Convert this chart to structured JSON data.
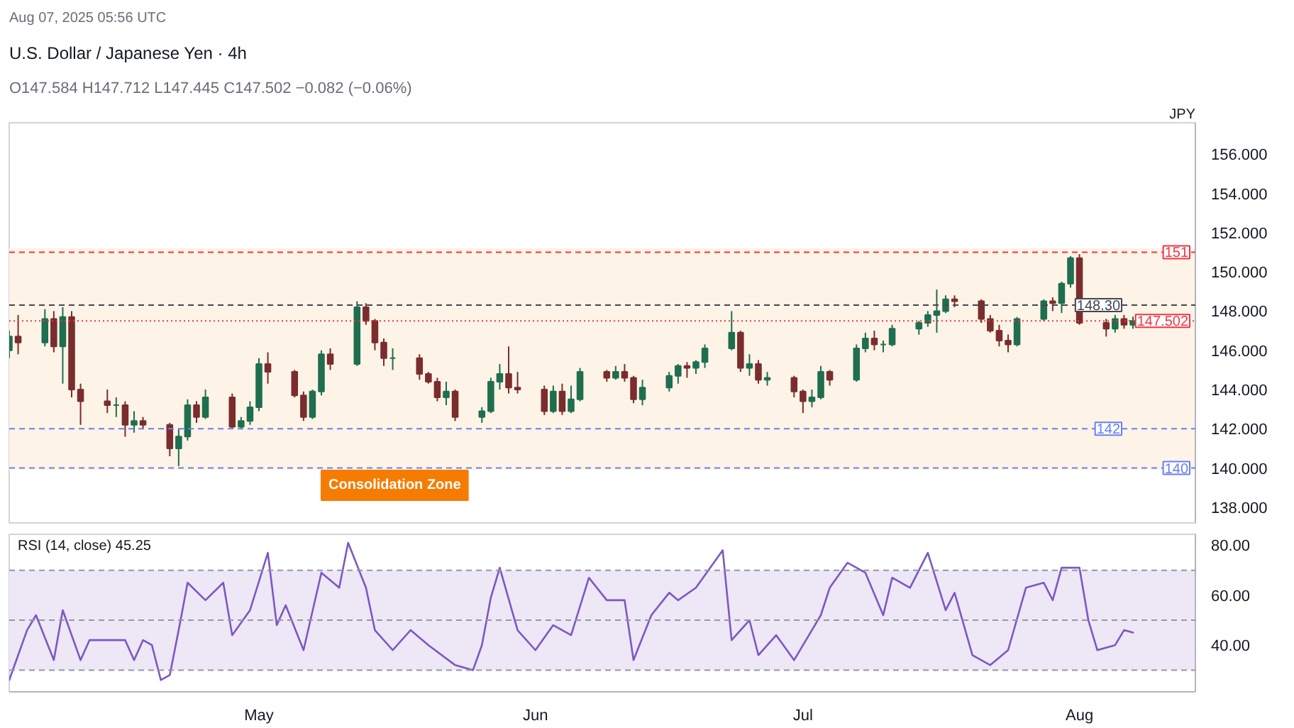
{
  "chart_data": [
    {
      "type": "candlestick",
      "title": "U.S. Dollar / Japanese Yen · 4h",
      "subtitle": "O147.584  H147.712  L147.445  C147.502  −0.082 (−0.06%)",
      "ylabel": "JPY",
      "annotations": [
        "Aug 07, 2025 05:56 UTC",
        "Consolidation Zone"
      ],
      "x": [
        "2025-04-03",
        "2025-04-04",
        "2025-04-07",
        "2025-04-08",
        "2025-04-09",
        "2025-04-10",
        "2025-04-11",
        "2025-04-14",
        "2025-04-15",
        "2025-04-16",
        "2025-04-17",
        "2025-04-18",
        "2025-04-21",
        "2025-04-22",
        "2025-04-23",
        "2025-04-24",
        "2025-04-25",
        "2025-04-28",
        "2025-04-29",
        "2025-04-30",
        "2025-05-01",
        "2025-05-02",
        "2025-05-05",
        "2025-05-06",
        "2025-05-07",
        "2025-05-08",
        "2025-05-09",
        "2025-05-12",
        "2025-05-13",
        "2025-05-14",
        "2025-05-15",
        "2025-05-16",
        "2025-05-19",
        "2025-05-20",
        "2025-05-21",
        "2025-05-22",
        "2025-05-23",
        "2025-05-26",
        "2025-05-27",
        "2025-05-28",
        "2025-05-29",
        "2025-05-30",
        "2025-06-02",
        "2025-06-03",
        "2025-06-04",
        "2025-06-05",
        "2025-06-06",
        "2025-06-09",
        "2025-06-10",
        "2025-06-11",
        "2025-06-12",
        "2025-06-13",
        "2025-06-16",
        "2025-06-17",
        "2025-06-18",
        "2025-06-19",
        "2025-06-20",
        "2025-06-23",
        "2025-06-24",
        "2025-06-25",
        "2025-06-26",
        "2025-06-27",
        "2025-06-30",
        "2025-07-01",
        "2025-07-02",
        "2025-07-03",
        "2025-07-04",
        "2025-07-07",
        "2025-07-08",
        "2025-07-09",
        "2025-07-10",
        "2025-07-11",
        "2025-07-14",
        "2025-07-15",
        "2025-07-16",
        "2025-07-17",
        "2025-07-18",
        "2025-07-21",
        "2025-07-22",
        "2025-07-23",
        "2025-07-24",
        "2025-07-25",
        "2025-07-28",
        "2025-07-29",
        "2025-07-30",
        "2025-07-31",
        "2025-08-01",
        "2025-08-04",
        "2025-08-05",
        "2025-08-06",
        "2025-08-07"
      ],
      "ohlc": [
        [
          146.0,
          147.0,
          145.6,
          146.7
        ],
        [
          146.7,
          147.8,
          145.8,
          146.4
        ],
        [
          146.4,
          148.1,
          146.2,
          147.6
        ],
        [
          147.6,
          148.0,
          145.9,
          146.2
        ],
        [
          146.2,
          148.2,
          144.3,
          147.7
        ],
        [
          147.7,
          148.0,
          143.6,
          144.0
        ],
        [
          144.0,
          144.3,
          142.2,
          143.4
        ],
        [
          143.4,
          144.0,
          142.8,
          143.2
        ],
        [
          143.2,
          143.6,
          142.6,
          143.2
        ],
        [
          143.2,
          143.4,
          141.6,
          142.2
        ],
        [
          142.2,
          142.9,
          141.8,
          142.4
        ],
        [
          142.4,
          142.6,
          142.0,
          142.2
        ],
        [
          142.2,
          142.3,
          140.6,
          141.0
        ],
        [
          141.0,
          142.0,
          140.1,
          141.6
        ],
        [
          141.6,
          143.5,
          141.4,
          143.2
        ],
        [
          143.2,
          143.4,
          142.3,
          142.6
        ],
        [
          142.6,
          144.0,
          142.5,
          143.6
        ],
        [
          143.6,
          143.8,
          142.0,
          142.1
        ],
        [
          142.1,
          142.6,
          142.0,
          142.4
        ],
        [
          142.4,
          143.4,
          142.2,
          143.1
        ],
        [
          143.1,
          145.6,
          142.9,
          145.3
        ],
        [
          145.3,
          145.9,
          144.3,
          144.9
        ],
        [
          144.9,
          145.0,
          143.6,
          143.7
        ],
        [
          143.7,
          143.9,
          142.4,
          142.6
        ],
        [
          142.6,
          144.0,
          142.5,
          143.9
        ],
        [
          143.9,
          146.0,
          143.7,
          145.8
        ],
        [
          145.8,
          146.1,
          145.0,
          145.3
        ],
        [
          145.3,
          148.5,
          145.2,
          148.2
        ],
        [
          148.2,
          148.4,
          147.3,
          147.5
        ],
        [
          147.5,
          147.6,
          146.0,
          146.4
        ],
        [
          146.4,
          146.6,
          145.2,
          145.6
        ],
        [
          145.6,
          146.1,
          145.0,
          145.6
        ],
        [
          145.6,
          145.8,
          144.5,
          144.8
        ],
        [
          144.8,
          144.9,
          144.3,
          144.4
        ],
        [
          144.4,
          144.6,
          143.4,
          143.6
        ],
        [
          143.6,
          144.4,
          143.2,
          143.9
        ],
        [
          143.9,
          144.0,
          142.4,
          142.6
        ],
        [
          142.6,
          143.1,
          142.3,
          142.9
        ],
        [
          142.9,
          144.6,
          142.8,
          144.4
        ],
        [
          144.4,
          145.3,
          144.0,
          144.8
        ],
        [
          144.8,
          146.2,
          143.8,
          144.1
        ],
        [
          144.1,
          144.9,
          143.8,
          144.0
        ],
        [
          144.0,
          144.2,
          142.7,
          142.9
        ],
        [
          142.9,
          144.2,
          142.8,
          143.9
        ],
        [
          143.9,
          144.3,
          142.7,
          142.9
        ],
        [
          142.9,
          144.2,
          142.8,
          143.5
        ],
        [
          143.5,
          145.1,
          143.4,
          144.9
        ],
        [
          144.9,
          145.0,
          144.4,
          144.6
        ],
        [
          144.6,
          145.2,
          144.5,
          144.9
        ],
        [
          144.9,
          145.3,
          144.4,
          144.6
        ],
        [
          144.6,
          144.7,
          143.3,
          143.5
        ],
        [
          143.5,
          144.5,
          143.2,
          144.1
        ],
        [
          144.1,
          144.9,
          143.9,
          144.7
        ],
        [
          144.7,
          145.3,
          144.3,
          145.2
        ],
        [
          145.2,
          145.4,
          144.6,
          145.1
        ],
        [
          145.1,
          145.5,
          144.8,
          145.4
        ],
        [
          145.4,
          146.3,
          145.1,
          146.1
        ],
        [
          146.1,
          148.0,
          146.0,
          146.9
        ],
        [
          146.9,
          147.0,
          144.9,
          145.1
        ],
        [
          145.1,
          145.8,
          144.7,
          145.3
        ],
        [
          145.3,
          145.5,
          144.3,
          144.5
        ],
        [
          144.5,
          144.9,
          144.2,
          144.6
        ],
        [
          144.6,
          144.7,
          143.6,
          143.9
        ],
        [
          143.9,
          144.0,
          142.8,
          143.4
        ],
        [
          143.4,
          144.0,
          143.1,
          143.6
        ],
        [
          143.6,
          145.2,
          143.5,
          144.9
        ],
        [
          144.9,
          145.0,
          144.2,
          144.5
        ],
        [
          144.5,
          146.3,
          144.4,
          146.1
        ],
        [
          146.1,
          146.9,
          145.9,
          146.6
        ],
        [
          146.6,
          147.0,
          146.0,
          146.3
        ],
        [
          146.3,
          146.5,
          145.9,
          146.3
        ],
        [
          146.3,
          147.3,
          146.2,
          147.1
        ],
        [
          147.1,
          147.5,
          146.8,
          147.4
        ],
        [
          147.4,
          148.0,
          147.2,
          147.8
        ],
        [
          147.8,
          149.1,
          146.9,
          148.0
        ],
        [
          148.0,
          148.8,
          147.9,
          148.6
        ],
        [
          148.6,
          148.8,
          148.2,
          148.5
        ],
        [
          148.5,
          148.6,
          147.4,
          147.6
        ],
        [
          147.6,
          147.8,
          146.9,
          147.0
        ],
        [
          147.0,
          147.3,
          146.2,
          146.5
        ],
        [
          146.5,
          146.8,
          145.9,
          146.3
        ],
        [
          146.3,
          147.7,
          146.2,
          147.6
        ],
        [
          147.6,
          148.6,
          147.5,
          148.5
        ],
        [
          148.5,
          148.7,
          148.0,
          148.4
        ],
        [
          148.4,
          149.5,
          147.9,
          149.4
        ],
        [
          149.4,
          150.8,
          149.2,
          150.7
        ],
        [
          150.7,
          150.9,
          147.3,
          147.4
        ],
        [
          147.4,
          147.6,
          146.7,
          147.1
        ],
        [
          147.1,
          147.8,
          146.9,
          147.6
        ],
        [
          147.6,
          147.8,
          147.1,
          147.3
        ],
        [
          147.3,
          147.712,
          147.1,
          147.502
        ]
      ],
      "xlim": [
        "2025-04-03",
        "2025-08-14"
      ],
      "ylim": [
        137.2,
        157.6
      ],
      "yticks": [
        {
          "value": 138,
          "label": "138.000"
        },
        {
          "value": 140,
          "label": "140.000"
        },
        {
          "value": 142,
          "label": "142.000"
        },
        {
          "value": 144,
          "label": "144.000"
        },
        {
          "value": 146,
          "label": "146.000"
        },
        {
          "value": 148,
          "label": "148.000"
        },
        {
          "value": 150,
          "label": "150.000"
        },
        {
          "value": 152,
          "label": "152.000"
        },
        {
          "value": 154,
          "label": "154.000"
        },
        {
          "value": 156,
          "label": "156.000"
        }
      ],
      "ref_lines": [
        {
          "axis": "y",
          "value": 151,
          "label": "151",
          "color": "#f23645",
          "line_style": "dashed"
        },
        {
          "axis": "y",
          "value": 148.3,
          "label": "148.30",
          "color": "#434651",
          "line_style": "dashed"
        },
        {
          "axis": "y",
          "value": 147.502,
          "label": "147.502",
          "color": "#f23645",
          "line_style": "dotted"
        },
        {
          "axis": "y",
          "value": 142,
          "label": "142",
          "color": "#6a80f0",
          "line_style": "dashed"
        },
        {
          "axis": "y",
          "value": 140,
          "label": "140",
          "color": "#6a80f0",
          "line_style": "dashed"
        }
      ],
      "bands": [
        {
          "axis": "y",
          "from": 139.9,
          "to": 151.2,
          "color": "#fdf3e7"
        }
      ],
      "grid": false,
      "tick_labels": "y"
    },
    {
      "type": "line",
      "title": "RSI (14, close)  45.25",
      "x": [
        "2025-04-03",
        "2025-04-05",
        "2025-04-06",
        "2025-04-08",
        "2025-04-09",
        "2025-04-11",
        "2025-04-12",
        "2025-04-16",
        "2025-04-17",
        "2025-04-18",
        "2025-04-19",
        "2025-04-20",
        "2025-04-21",
        "2025-04-22",
        "2025-04-23",
        "2025-04-25",
        "2025-04-27",
        "2025-04-28",
        "2025-04-30",
        "2025-05-02",
        "2025-05-03",
        "2025-05-04",
        "2025-05-06",
        "2025-05-08",
        "2025-05-10",
        "2025-05-11",
        "2025-05-13",
        "2025-05-14",
        "2025-05-16",
        "2025-05-18",
        "2025-05-20",
        "2025-05-23",
        "2025-05-25",
        "2025-05-26",
        "2025-05-27",
        "2025-05-28",
        "2025-05-30",
        "2025-06-01",
        "2025-06-03",
        "2025-06-05",
        "2025-06-07",
        "2025-06-09",
        "2025-06-11",
        "2025-06-12",
        "2025-06-14",
        "2025-06-16",
        "2025-06-17",
        "2025-06-19",
        "2025-06-22",
        "2025-06-23",
        "2025-06-25",
        "2025-06-26",
        "2025-06-28",
        "2025-06-30",
        "2025-07-02",
        "2025-07-03",
        "2025-07-04",
        "2025-07-06",
        "2025-07-08",
        "2025-07-10",
        "2025-07-11",
        "2025-07-13",
        "2025-07-15",
        "2025-07-17",
        "2025-07-18",
        "2025-07-20",
        "2025-07-22",
        "2025-07-24",
        "2025-07-26",
        "2025-07-28",
        "2025-07-29",
        "2025-07-30",
        "2025-08-01",
        "2025-08-02",
        "2025-08-03",
        "2025-08-05",
        "2025-08-06",
        "2025-08-07"
      ],
      "series": [
        {
          "color": "#7e57c2",
          "values": [
            26,
            46,
            52,
            34,
            54,
            34,
            42,
            42,
            34,
            42,
            40,
            26,
            28,
            46,
            65,
            58,
            65,
            44,
            54,
            77,
            48,
            56,
            38,
            69,
            63,
            81,
            63,
            46,
            38,
            46,
            40,
            32,
            30,
            40,
            59,
            71,
            46,
            38,
            48,
            44,
            67,
            58,
            58,
            34,
            52,
            61,
            58,
            63,
            78,
            42,
            50,
            36,
            44,
            34,
            46,
            52,
            63,
            73,
            69,
            52,
            67,
            63,
            77,
            54,
            61,
            36,
            32,
            38,
            63,
            65,
            58,
            71,
            71,
            50,
            38,
            40,
            46,
            45
          ]
        }
      ],
      "xlim": [
        "2025-04-03",
        "2025-08-14"
      ],
      "ylim": [
        21.3,
        84.4
      ],
      "xticks": [
        {
          "value": "2025-05-01",
          "label": "May"
        },
        {
          "value": "2025-06-01",
          "label": "Jun"
        },
        {
          "value": "2025-07-01",
          "label": "Jul"
        },
        {
          "value": "2025-08-01",
          "label": "Aug"
        }
      ],
      "yticks": [
        {
          "value": 40,
          "label": "40.00"
        },
        {
          "value": 60,
          "label": "60.00"
        },
        {
          "value": 80,
          "label": "80.00"
        }
      ],
      "ref_lines": [
        {
          "axis": "y",
          "value": 70,
          "color": "#9598a1",
          "line_style": "dashed"
        },
        {
          "axis": "y",
          "value": 50,
          "color": "#9598a1",
          "line_style": "dashed"
        },
        {
          "axis": "y",
          "value": 30,
          "color": "#9598a1",
          "line_style": "dashed"
        }
      ],
      "bands": [
        {
          "axis": "y",
          "from": 30,
          "to": 70,
          "color": "#ede7f6"
        }
      ],
      "grid": false,
      "line_style": "solid"
    }
  ]
}
